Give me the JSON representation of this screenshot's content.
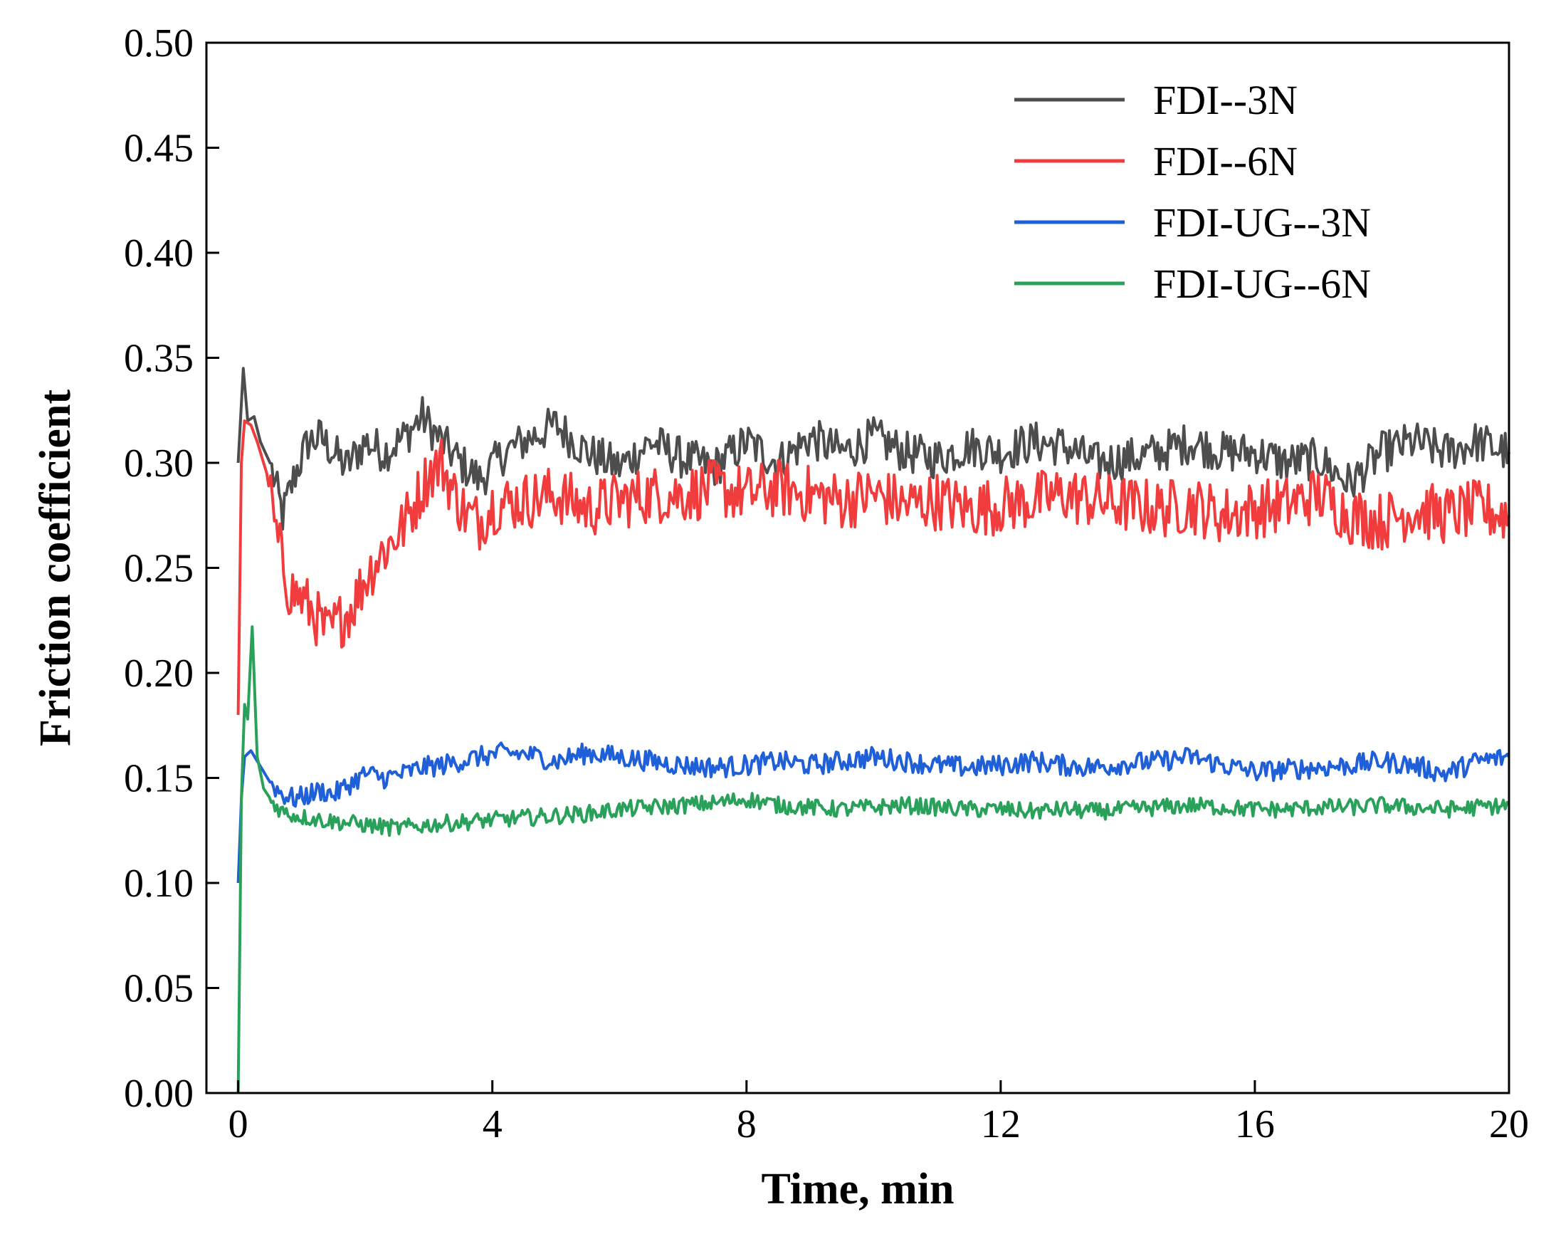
{
  "chart_data": {
    "type": "line",
    "title": "",
    "xlabel": "Time, min",
    "ylabel": "Friction coefficient",
    "xlim": [
      -0.5,
      20
    ],
    "ylim": [
      0.0,
      0.5
    ],
    "xticks": [
      0,
      4,
      8,
      12,
      16,
      20
    ],
    "xtick_labels": [
      "0",
      "4",
      "8",
      "12",
      "16",
      "20"
    ],
    "yticks": [
      0.0,
      0.05,
      0.1,
      0.15,
      0.2,
      0.25,
      0.3,
      0.35,
      0.4,
      0.45,
      0.5
    ],
    "ytick_labels": [
      "0.00",
      "0.05",
      "0.10",
      "0.15",
      "0.20",
      "0.25",
      "0.30",
      "0.35",
      "0.40",
      "0.45",
      "0.50"
    ],
    "grid": false,
    "legend_position": "top-right",
    "series": [
      {
        "name": "FDI--3N",
        "color": "#4d4d4d",
        "x": [
          0,
          0.08,
          0.15,
          0.25,
          0.35,
          0.5,
          0.7,
          0.9,
          1.1,
          1.3,
          1.5,
          1.7,
          2.0,
          2.3,
          2.6,
          2.9,
          3.2,
          3.5,
          3.8,
          4.2,
          4.6,
          5.0,
          5.5,
          6.0,
          6.5,
          7.0,
          7.5,
          8.0,
          8.5,
          9.0,
          9.5,
          10.0,
          10.5,
          11.0,
          11.5,
          12.0,
          12.5,
          13.0,
          13.5,
          14.0,
          14.5,
          15.0,
          15.5,
          16.0,
          16.5,
          17.0,
          17.5,
          18.0,
          18.5,
          19.0,
          19.5,
          20.0
        ],
        "y": [
          0.3,
          0.345,
          0.32,
          0.322,
          0.31,
          0.3,
          0.275,
          0.295,
          0.31,
          0.312,
          0.305,
          0.298,
          0.31,
          0.305,
          0.312,
          0.322,
          0.31,
          0.3,
          0.292,
          0.305,
          0.312,
          0.318,
          0.305,
          0.298,
          0.31,
          0.302,
          0.298,
          0.31,
          0.3,
          0.312,
          0.305,
          0.312,
          0.305,
          0.302,
          0.308,
          0.305,
          0.31,
          0.308,
          0.3,
          0.302,
          0.305,
          0.31,
          0.305,
          0.305,
          0.3,
          0.302,
          0.29,
          0.305,
          0.31,
          0.305,
          0.31,
          0.305
        ]
      },
      {
        "name": "FDI--6N",
        "color": "#f03c3c",
        "x": [
          0,
          0.05,
          0.1,
          0.2,
          0.3,
          0.45,
          0.6,
          0.8,
          1.0,
          1.2,
          1.4,
          1.6,
          1.8,
          2.0,
          2.2,
          2.4,
          2.6,
          2.8,
          3.0,
          3.2,
          3.4,
          3.6,
          3.8,
          4.0,
          4.5,
          5.0,
          5.5,
          6.0,
          6.5,
          7.0,
          7.5,
          8.0,
          8.5,
          9.0,
          9.5,
          10.0,
          10.5,
          11.0,
          11.5,
          12.0,
          12.5,
          13.0,
          13.5,
          14.0,
          14.5,
          15.0,
          15.5,
          16.0,
          16.5,
          17.0,
          17.5,
          18.0,
          18.5,
          19.0,
          19.5,
          20.0
        ],
        "y": [
          0.18,
          0.3,
          0.32,
          0.318,
          0.31,
          0.295,
          0.265,
          0.24,
          0.235,
          0.228,
          0.218,
          0.225,
          0.232,
          0.245,
          0.255,
          0.262,
          0.27,
          0.282,
          0.295,
          0.3,
          0.285,
          0.275,
          0.272,
          0.28,
          0.282,
          0.285,
          0.278,
          0.282,
          0.285,
          0.285,
          0.288,
          0.285,
          0.288,
          0.285,
          0.282,
          0.285,
          0.28,
          0.282,
          0.278,
          0.28,
          0.282,
          0.285,
          0.282,
          0.28,
          0.278,
          0.28,
          0.275,
          0.278,
          0.28,
          0.285,
          0.275,
          0.272,
          0.278,
          0.275,
          0.278,
          0.275
        ]
      },
      {
        "name": "FDI-UG--3N",
        "color": "#1f5fd8",
        "x": [
          0,
          0.05,
          0.1,
          0.2,
          0.3,
          0.5,
          0.7,
          0.9,
          1.1,
          1.3,
          1.5,
          1.7,
          2.0,
          2.3,
          2.6,
          2.9,
          3.2,
          3.5,
          3.8,
          4.2,
          4.6,
          5.0,
          5.5,
          6.0,
          6.5,
          7.0,
          7.5,
          8.0,
          8.5,
          9.0,
          9.5,
          10.0,
          10.5,
          11.0,
          11.5,
          12.0,
          12.5,
          13.0,
          13.5,
          14.0,
          14.5,
          15.0,
          15.5,
          16.0,
          16.5,
          17.0,
          17.5,
          18.0,
          18.5,
          19.0,
          19.5,
          20.0
        ],
        "y": [
          0.1,
          0.14,
          0.16,
          0.163,
          0.158,
          0.148,
          0.142,
          0.14,
          0.142,
          0.144,
          0.142,
          0.146,
          0.152,
          0.15,
          0.152,
          0.155,
          0.156,
          0.158,
          0.16,
          0.162,
          0.161,
          0.158,
          0.162,
          0.16,
          0.158,
          0.156,
          0.155,
          0.156,
          0.158,
          0.156,
          0.158,
          0.16,
          0.158,
          0.156,
          0.155,
          0.156,
          0.158,
          0.156,
          0.155,
          0.157,
          0.158,
          0.16,
          0.156,
          0.153,
          0.154,
          0.155,
          0.156,
          0.158,
          0.156,
          0.152,
          0.158,
          0.16
        ]
      },
      {
        "name": "FDI-UG--6N",
        "color": "#2aa15a",
        "x": [
          0,
          0.05,
          0.1,
          0.15,
          0.22,
          0.3,
          0.4,
          0.55,
          0.7,
          0.9,
          1.1,
          1.3,
          1.6,
          1.9,
          2.2,
          2.5,
          2.8,
          3.1,
          3.5,
          4.0,
          4.5,
          5.0,
          5.5,
          6.0,
          6.5,
          7.0,
          7.5,
          8.0,
          8.5,
          9.0,
          9.5,
          10.0,
          10.5,
          11.0,
          11.5,
          12.0,
          12.5,
          13.0,
          13.5,
          14.0,
          14.5,
          15.0,
          15.5,
          16.0,
          16.5,
          17.0,
          17.5,
          18.0,
          18.5,
          19.0,
          19.5,
          20.0
        ],
        "y": [
          0.0,
          0.14,
          0.185,
          0.178,
          0.222,
          0.16,
          0.145,
          0.138,
          0.134,
          0.132,
          0.131,
          0.13,
          0.129,
          0.128,
          0.127,
          0.126,
          0.127,
          0.128,
          0.129,
          0.13,
          0.131,
          0.132,
          0.133,
          0.135,
          0.136,
          0.137,
          0.138,
          0.14,
          0.137,
          0.136,
          0.135,
          0.136,
          0.137,
          0.136,
          0.135,
          0.135,
          0.134,
          0.135,
          0.134,
          0.135,
          0.136,
          0.137,
          0.136,
          0.135,
          0.135,
          0.136,
          0.136,
          0.137,
          0.136,
          0.135,
          0.136,
          0.137
        ]
      }
    ]
  }
}
